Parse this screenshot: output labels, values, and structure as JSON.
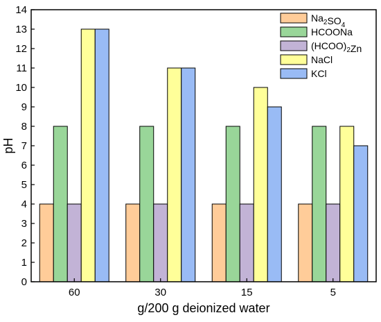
{
  "chart_data": {
    "type": "bar",
    "xlabel": "g/200 g deionized water",
    "ylabel": "pH",
    "ylim": [
      0,
      14
    ],
    "yticks": [
      "0",
      "1",
      "2",
      "3",
      "4",
      "5",
      "6",
      "7",
      "8",
      "9",
      "10",
      "11",
      "12",
      "13",
      "14"
    ],
    "categories": [
      "60",
      "30",
      "15",
      "5"
    ],
    "legend_position": "top-right",
    "grid": false,
    "series": [
      {
        "name": "Na2SO4",
        "name_parts": [
          {
            "t": "Na",
            "sub": false
          },
          {
            "t": "2",
            "sub": true
          },
          {
            "t": "SO",
            "sub": false
          },
          {
            "t": "4",
            "sub": true
          }
        ],
        "color": "#FFCC99",
        "values": [
          4,
          4,
          4,
          4
        ]
      },
      {
        "name": "HCOONa",
        "name_parts": [
          {
            "t": "HCOONa",
            "sub": false
          }
        ],
        "color": "#99D699",
        "values": [
          8,
          8,
          8,
          8
        ]
      },
      {
        "name": "(HCOO)2Zn",
        "name_parts": [
          {
            "t": "(HCOO)",
            "sub": false
          },
          {
            "t": "2",
            "sub": true
          },
          {
            "t": "Zn",
            "sub": false
          }
        ],
        "color": "#C2B3D6",
        "values": [
          4,
          4,
          4,
          4
        ]
      },
      {
        "name": "NaCl",
        "name_parts": [
          {
            "t": "NaCl",
            "sub": false
          }
        ],
        "color": "#FFFF99",
        "values": [
          13,
          11,
          10,
          8
        ]
      },
      {
        "name": "KCl",
        "name_parts": [
          {
            "t": "KCl",
            "sub": false
          }
        ],
        "color": "#99BBF5",
        "values": [
          13,
          11,
          9,
          7
        ]
      }
    ]
  }
}
